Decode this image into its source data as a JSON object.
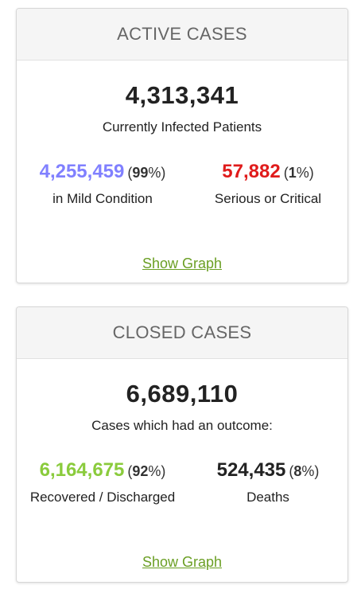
{
  "active_cases": {
    "title": "ACTIVE CASES",
    "total": "4,313,341",
    "total_caption": "Currently Infected Patients",
    "mild": {
      "value": "4,255,459",
      "percent": "99",
      "caption": "in Mild Condition",
      "color": "#8080ff"
    },
    "serious": {
      "value": "57,882",
      "percent": "1",
      "caption": "Serious or Critical",
      "color": "#e01b1b"
    },
    "show_graph": "Show Graph"
  },
  "closed_cases": {
    "title": "CLOSED CASES",
    "total": "6,689,110",
    "total_caption": "Cases which had an outcome:",
    "recovered": {
      "value": "6,164,675",
      "percent": "92",
      "caption": "Recovered / Discharged",
      "color": "#8acb3c"
    },
    "deaths": {
      "value": "524,435",
      "percent": "8",
      "caption": "Deaths"
    },
    "show_graph": "Show Graph"
  },
  "colors": {
    "link": "#6b9f24",
    "heading_bg": "#f5f5f5",
    "border": "#d7d7d7"
  }
}
